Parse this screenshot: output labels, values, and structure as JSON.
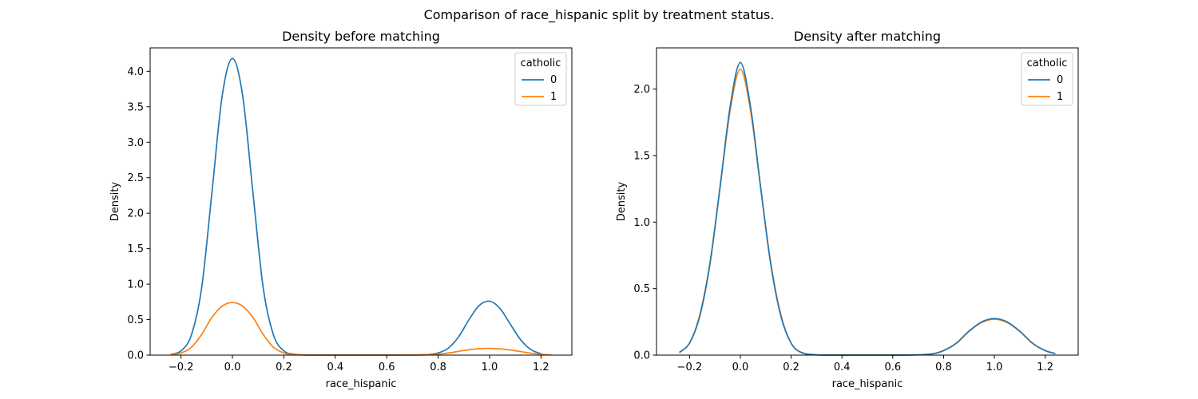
{
  "figure_title": "Comparison of race_hispanic split by treatment status.",
  "colors": {
    "series0": "#1f77b4",
    "series1": "#ff7f0e"
  },
  "chart_data": [
    {
      "type": "line",
      "title": "Density before matching",
      "xlabel": "race_hispanic",
      "ylabel": "Density",
      "xlim": [
        -0.32,
        1.32
      ],
      "ylim": [
        0,
        4.33
      ],
      "xticks": [
        -0.2,
        0.0,
        0.2,
        0.4,
        0.6,
        0.8,
        1.0,
        1.2
      ],
      "xtick_labels": [
        "−0.2",
        "0.0",
        "0.2",
        "0.4",
        "0.6",
        "0.8",
        "1.0",
        "1.2"
      ],
      "yticks": [
        0,
        0.5,
        1.0,
        1.5,
        2.0,
        2.5,
        3.0,
        3.5,
        4.0
      ],
      "ytick_labels": [
        "0.0",
        "0.5",
        "1.0",
        "1.5",
        "2.0",
        "2.5",
        "3.0",
        "3.5",
        "4.0"
      ],
      "legend": {
        "title": "catholic",
        "placement": "upper-right"
      },
      "series": [
        {
          "name": "0",
          "color": "#1f77b4",
          "x": [
            -0.24,
            -0.2,
            -0.16,
            -0.12,
            -0.08,
            -0.04,
            0.0,
            0.04,
            0.08,
            0.12,
            0.16,
            0.2,
            0.24,
            0.3,
            0.4,
            0.5,
            0.6,
            0.7,
            0.76,
            0.8,
            0.84,
            0.88,
            0.92,
            0.96,
            1.0,
            1.04,
            1.08,
            1.12,
            1.16,
            1.2
          ],
          "y": [
            0.009,
            0.06,
            0.28,
            0.94,
            2.28,
            3.65,
            4.18,
            3.65,
            2.28,
            0.94,
            0.28,
            0.06,
            0.012,
            0.001,
            0.0,
            0.0,
            0.0,
            0.001,
            0.007,
            0.03,
            0.1,
            0.26,
            0.5,
            0.7,
            0.76,
            0.66,
            0.44,
            0.22,
            0.08,
            0.02
          ]
        },
        {
          "name": "1",
          "color": "#ff7f0e",
          "x": [
            -0.24,
            -0.2,
            -0.16,
            -0.12,
            -0.08,
            -0.04,
            0.0,
            0.04,
            0.08,
            0.12,
            0.16,
            0.2,
            0.24,
            0.3,
            0.4,
            0.5,
            0.6,
            0.7,
            0.76,
            0.8,
            0.85,
            0.9,
            0.95,
            1.0,
            1.05,
            1.1,
            1.15,
            1.2,
            1.24
          ],
          "y": [
            0.005,
            0.03,
            0.11,
            0.29,
            0.53,
            0.69,
            0.74,
            0.69,
            0.53,
            0.29,
            0.11,
            0.03,
            0.005,
            0.0,
            0.0,
            0.0,
            0.0,
            0.001,
            0.004,
            0.012,
            0.035,
            0.065,
            0.088,
            0.095,
            0.086,
            0.062,
            0.033,
            0.012,
            0.003
          ]
        }
      ]
    },
    {
      "type": "line",
      "title": "Density after matching",
      "xlabel": "race_hispanic",
      "ylabel": "Density",
      "xlim": [
        -0.33,
        1.33
      ],
      "ylim": [
        0,
        2.31
      ],
      "xticks": [
        -0.2,
        0.0,
        0.2,
        0.4,
        0.6,
        0.8,
        1.0,
        1.2
      ],
      "xtick_labels": [
        "−0.2",
        "0.0",
        "0.2",
        "0.4",
        "0.6",
        "0.8",
        "1.0",
        "1.2"
      ],
      "yticks": [
        0,
        0.5,
        1.0,
        1.5,
        2.0
      ],
      "ytick_labels": [
        "0.0",
        "0.5",
        "1.0",
        "1.5",
        "2.0"
      ],
      "legend": {
        "title": "catholic",
        "placement": "upper-right"
      },
      "series": [
        {
          "name": "0",
          "color": "#1f77b4",
          "x": [
            -0.24,
            -0.2,
            -0.16,
            -0.12,
            -0.08,
            -0.04,
            0.0,
            0.04,
            0.08,
            0.12,
            0.16,
            0.2,
            0.24,
            0.3,
            0.4,
            0.5,
            0.6,
            0.7,
            0.76,
            0.8,
            0.85,
            0.9,
            0.95,
            1.0,
            1.05,
            1.1,
            1.15,
            1.2,
            1.24
          ],
          "y": [
            0.02,
            0.09,
            0.29,
            0.68,
            1.26,
            1.87,
            2.2,
            1.87,
            1.26,
            0.68,
            0.29,
            0.09,
            0.02,
            0.002,
            0.0,
            0.0,
            0.0,
            0.002,
            0.011,
            0.034,
            0.09,
            0.18,
            0.25,
            0.275,
            0.25,
            0.18,
            0.09,
            0.034,
            0.012
          ]
        },
        {
          "name": "1",
          "color": "#ff7f0e",
          "x": [
            -0.24,
            -0.2,
            -0.16,
            -0.12,
            -0.08,
            -0.04,
            0.0,
            0.04,
            0.08,
            0.12,
            0.16,
            0.2,
            0.24,
            0.3,
            0.4,
            0.5,
            0.6,
            0.7,
            0.76,
            0.8,
            0.85,
            0.9,
            0.95,
            1.0,
            1.05,
            1.1,
            1.15,
            1.2,
            1.24
          ],
          "y": [
            0.02,
            0.09,
            0.3,
            0.69,
            1.26,
            1.84,
            2.15,
            1.84,
            1.26,
            0.69,
            0.3,
            0.09,
            0.02,
            0.002,
            0.0,
            0.0,
            0.0,
            0.002,
            0.011,
            0.033,
            0.088,
            0.178,
            0.245,
            0.27,
            0.245,
            0.178,
            0.088,
            0.033,
            0.011
          ]
        }
      ]
    }
  ]
}
